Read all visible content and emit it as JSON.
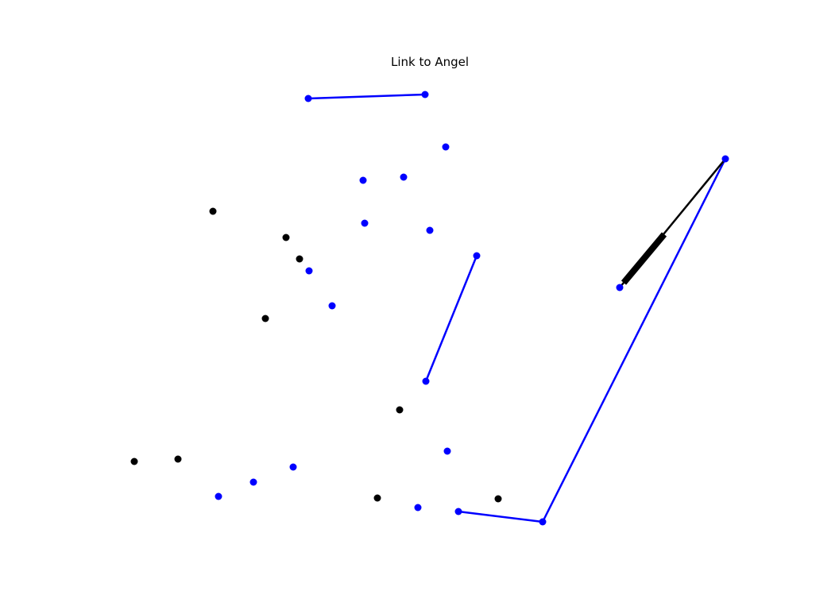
{
  "title": "Link to Angel",
  "colors": {
    "blue": "#0000ff",
    "black": "#000000"
  }
}
